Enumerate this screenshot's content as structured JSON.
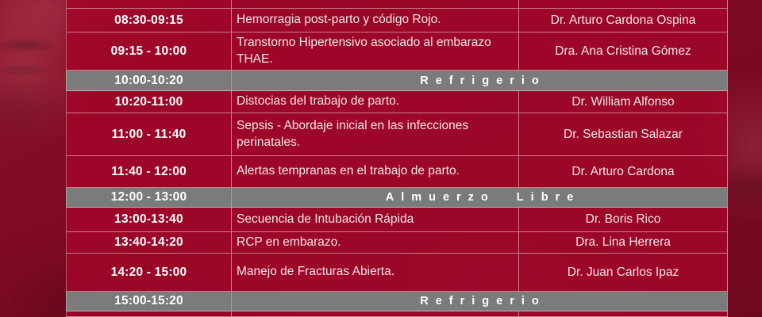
{
  "theme": {
    "cell_red": "#a20829",
    "background_red": "#7c0a22",
    "banner_gray": "#7b7b7c",
    "grid_line": "rgba(255,238,242,0.5)",
    "time_text": "#ffffff",
    "body_text": "#f5e6e9"
  },
  "agenda": {
    "rows": [
      {
        "type": "session",
        "time": "08:30-09:15",
        "topic": "Hemorragia post-parto y código Rojo.",
        "speaker": "Dr. Arturo Cardona Ospina"
      },
      {
        "type": "session",
        "time": "09:15 - 10:00",
        "topic": "Transtorno Hipertensivo asociado al embarazo THAE.",
        "speaker": "Dra. Ana Cristina Gómez"
      },
      {
        "type": "break",
        "time": "10:00-10:20",
        "label": "Refrigerio"
      },
      {
        "type": "session",
        "time": "10:20-11:00",
        "topic": "Distocias del trabajo de parto.",
        "speaker": "Dr. William Alfonso"
      },
      {
        "type": "session",
        "time": "11:00 - 11:40",
        "topic": "Sepsis - Abordaje inicial en las infecciones perinatales.",
        "speaker": "Dr. Sebastian Salazar"
      },
      {
        "type": "session",
        "time": "11:40 - 12:00",
        "topic": "Alertas tempranas en el trabajo de parto.",
        "speaker": "Dr. Arturo Cardona"
      },
      {
        "type": "break",
        "time": "12:00 - 13:00",
        "label": "Almuerzo Libre"
      },
      {
        "type": "session",
        "time": "13:00-13:40",
        "topic": "Secuencia de Intubación Rápida",
        "speaker": "Dr. Boris Rico"
      },
      {
        "type": "session",
        "time": "13:40-14:20",
        "topic": "RCP en embarazo.",
        "speaker": "Dra. Lina Herrera"
      },
      {
        "type": "session",
        "time": "14:20 - 15:00",
        "topic": "Manejo de Fracturas Abierta.",
        "speaker": "Dr. Juan Carlos Ipaz"
      },
      {
        "type": "break",
        "time": "15:00-15:20",
        "label": "Refrigerio"
      }
    ]
  }
}
